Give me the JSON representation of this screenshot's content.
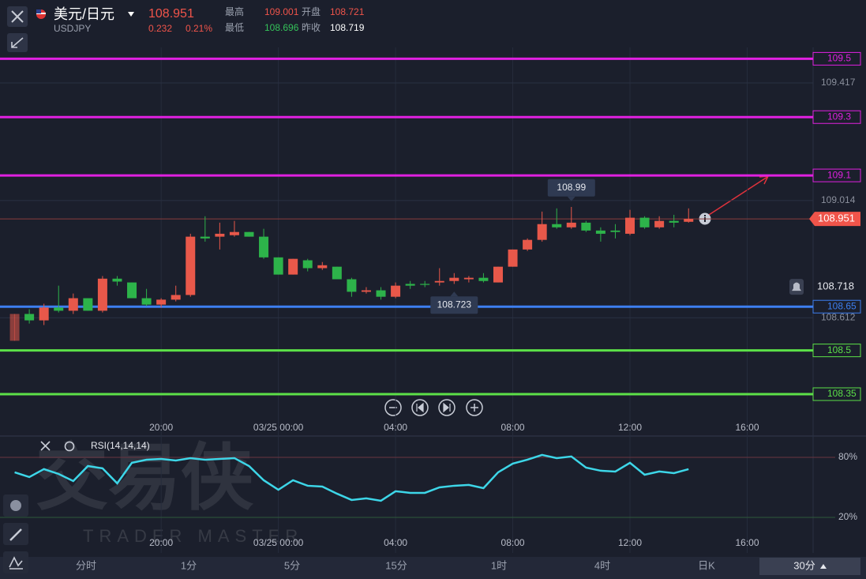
{
  "header": {
    "symbol_name": "美元/日元",
    "symbol_code": "USDJPY",
    "price": 108.951,
    "change": 0.232,
    "change_pct": "0.21%",
    "high_label": "最高",
    "high": 109.001,
    "open_label": "开盘",
    "open": 108.721,
    "low_label": "最低",
    "low": 108.696,
    "prev_close_label": "昨收",
    "prev_close": 108.719
  },
  "watermark": {
    "brand": "交易侠",
    "brand_en": "TRADER MASTER"
  },
  "chart_data": [
    {
      "type": "candlestick",
      "x": [
        15,
        15.5,
        16,
        16.5,
        17,
        17.5,
        18,
        18.5,
        19,
        19.5,
        20,
        20.5,
        21,
        21.5,
        22,
        22.5,
        23,
        23.5,
        24,
        24.5,
        25,
        25.5,
        26,
        26.5,
        27,
        27.5,
        28,
        28.5,
        29,
        29.5,
        30,
        30.5,
        31,
        31.5,
        32,
        32.5,
        33,
        33.5,
        34,
        34.5,
        35,
        35.5,
        36,
        36.5,
        37,
        37.5,
        38
      ],
      "open": [
        108.533,
        108.625,
        108.603,
        108.647,
        108.636,
        108.679,
        108.636,
        108.746,
        108.733,
        108.679,
        108.657,
        108.674,
        108.69,
        108.89,
        108.89,
        108.895,
        108.906,
        108.89,
        108.819,
        108.76,
        108.809,
        108.782,
        108.787,
        108.744,
        108.701,
        108.706,
        108.684,
        108.728,
        108.728,
        108.733,
        108.738,
        108.744,
        108.749,
        108.733,
        108.787,
        108.846,
        108.879,
        108.933,
        108.922,
        108.938,
        108.911,
        108.911,
        108.9,
        108.955,
        108.922,
        108.944,
        108.941
      ],
      "high": [
        108.625,
        108.641,
        108.66,
        108.722,
        108.695,
        108.679,
        108.755,
        108.755,
        108.733,
        108.711,
        108.679,
        108.722,
        108.9,
        108.96,
        108.938,
        108.944,
        108.906,
        108.917,
        108.819,
        108.814,
        108.814,
        108.803,
        108.787,
        108.749,
        108.717,
        108.717,
        108.733,
        108.738,
        108.738,
        108.782,
        108.765,
        108.755,
        108.765,
        108.787,
        108.846,
        108.884,
        108.976,
        108.987,
        108.992,
        108.944,
        108.922,
        108.933,
        108.982,
        108.96,
        108.96,
        108.965,
        108.987
      ],
      "low": [
        108.533,
        108.592,
        108.587,
        108.63,
        108.625,
        108.636,
        108.63,
        108.722,
        108.679,
        108.652,
        108.647,
        108.668,
        108.684,
        108.873,
        108.846,
        108.89,
        108.89,
        108.814,
        108.76,
        108.76,
        108.771,
        108.776,
        108.744,
        108.684,
        108.695,
        108.674,
        108.679,
        108.711,
        108.717,
        108.722,
        108.728,
        108.733,
        108.733,
        108.733,
        108.787,
        108.841,
        108.873,
        108.917,
        108.917,
        108.906,
        108.873,
        108.884,
        108.895,
        108.917,
        108.917,
        108.922,
        108.938
      ],
      "close": [
        108.625,
        108.603,
        108.647,
        108.636,
        108.679,
        108.636,
        108.746,
        108.736,
        108.679,
        108.657,
        108.674,
        108.69,
        108.89,
        108.884,
        108.9,
        108.906,
        108.89,
        108.819,
        108.76,
        108.814,
        108.782,
        108.792,
        108.744,
        108.701,
        108.706,
        108.684,
        108.722,
        108.722,
        108.725,
        108.738,
        108.749,
        108.749,
        108.738,
        108.787,
        108.846,
        108.879,
        108.933,
        108.922,
        108.938,
        108.911,
        108.9,
        108.906,
        108.955,
        108.922,
        108.944,
        108.938,
        108.951
      ],
      "up_color": "#e8584a",
      "down_color": "#2db34a",
      "xlim": [
        14.5,
        42.25
      ],
      "xticks": [
        {
          "value": 20,
          "label": "20:00"
        },
        {
          "value": 24,
          "label": "03/25 00:00"
        },
        {
          "value": 28,
          "label": "04:00"
        },
        {
          "value": 32,
          "label": "08:00"
        },
        {
          "value": 36,
          "label": "12:00"
        },
        {
          "value": 40,
          "label": "16:00"
        }
      ],
      "ylim": [
        108.266,
        109.539
      ],
      "yticks": [
        109.417,
        109.014,
        108.612
      ],
      "levels": [
        {
          "value": 109.5,
          "color": "#e020e0"
        },
        {
          "value": 109.3,
          "color": "#e020e0"
        },
        {
          "value": 109.1,
          "color": "#e020e0"
        },
        {
          "value": 108.65,
          "color": "#3d7ff0"
        },
        {
          "value": 108.5,
          "color": "#5ce048"
        },
        {
          "value": 108.35,
          "color": "#5ce048"
        }
      ],
      "current_price": 108.951,
      "alert_price": 108.718,
      "markers": [
        {
          "x": 34,
          "value": 108.99,
          "position": "above"
        },
        {
          "x": 30,
          "value": 108.723,
          "position": "below"
        }
      ]
    },
    {
      "type": "line",
      "title": "RSI(14,14,14)",
      "color": "#3dd6e8",
      "x": [
        15,
        15.5,
        16,
        16.5,
        17,
        17.5,
        18,
        18.5,
        19,
        19.5,
        20,
        20.5,
        21,
        21.5,
        22,
        22.5,
        23,
        23.5,
        24,
        24.5,
        25,
        25.5,
        26,
        26.5,
        27,
        27.5,
        28,
        28.5,
        29,
        29.5,
        30,
        30.5,
        31,
        31.5,
        32,
        32.5,
        33,
        33.5,
        34,
        34.5,
        35,
        35.5,
        36,
        36.5,
        37,
        37.5,
        38
      ],
      "values": [
        65.0,
        60.3,
        68.2,
        63.4,
        56.3,
        71.3,
        69.0,
        54.0,
        74.5,
        77.6,
        78.4,
        76.8,
        79.2,
        77.6,
        78.4,
        79.2,
        71.3,
        57.1,
        47.6,
        57.1,
        51.6,
        50.8,
        43.7,
        37.4,
        39.0,
        36.6,
        46.1,
        44.5,
        44.5,
        50.0,
        51.6,
        52.4,
        49.2,
        65.0,
        73.7,
        77.6,
        82.4,
        79.2,
        80.8,
        69.7,
        66.6,
        65.8,
        74.5,
        62.6,
        65.8,
        64.2,
        68.2
      ],
      "ylim": [
        -15.5,
        91
      ],
      "yticks": [
        {
          "value": 80,
          "label": "80%"
        },
        {
          "value": 20,
          "label": "20%"
        }
      ]
    }
  ],
  "tabs": [
    "分时",
    "1分",
    "5分",
    "15分",
    "1时",
    "4时",
    "日K",
    "30分"
  ],
  "active_tab": 7
}
